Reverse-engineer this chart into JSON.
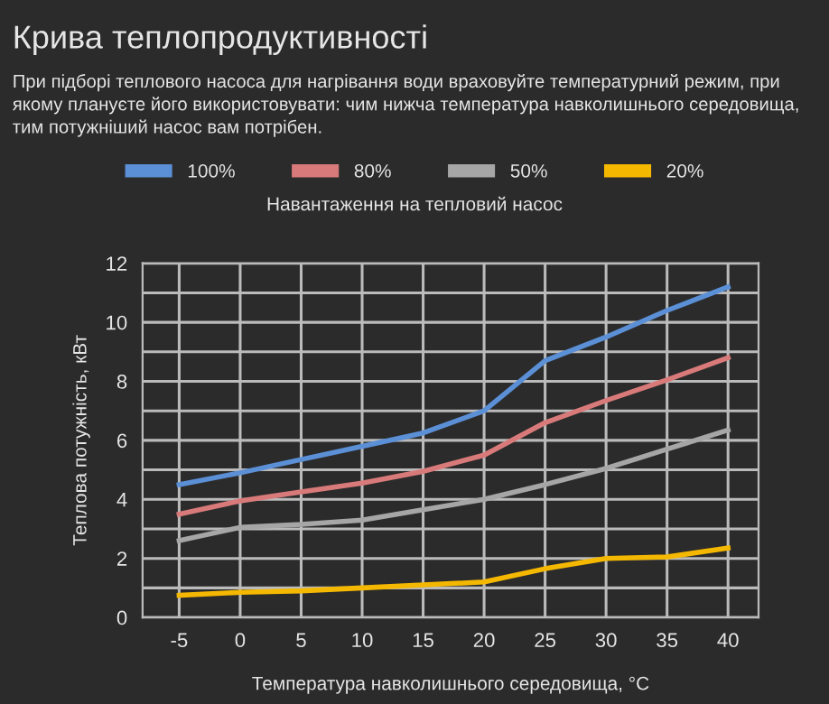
{
  "chart_data": {
    "type": "line",
    "title": "Крива теплопродуктивності",
    "subtitle": "При підборі теплового насоса для нагрівання води враховуйте температурний режим, при якому плануєте його використовувати: чим нижча температура навколишнього середовища, тим потужніший насос вам потрібен.",
    "xlabel": "Температура навколишнього середовища, °C",
    "ylabel": "Теплова потужність, кВт",
    "legend_title": "Навантаження на тепловий насос",
    "x": [
      -5,
      0,
      5,
      10,
      15,
      20,
      25,
      30,
      35,
      40
    ],
    "series": [
      {
        "name": "100%",
        "color": "#5b8fd6",
        "values": [
          4.5,
          4.9,
          5.35,
          5.8,
          6.25,
          7.0,
          8.7,
          9.5,
          10.4,
          11.2
        ]
      },
      {
        "name": "80%",
        "color": "#d97a7a",
        "values": [
          3.5,
          3.95,
          4.25,
          4.55,
          4.95,
          5.5,
          6.6,
          7.35,
          8.05,
          8.8
        ]
      },
      {
        "name": "50%",
        "color": "#a6a6a6",
        "values": [
          2.6,
          3.05,
          3.15,
          3.3,
          3.65,
          4.0,
          4.5,
          5.05,
          5.7,
          6.35
        ]
      },
      {
        "name": "20%",
        "color": "#f5b800",
        "values": [
          0.75,
          0.85,
          0.9,
          1.0,
          1.1,
          1.2,
          1.65,
          2.0,
          2.05,
          2.35
        ]
      }
    ],
    "xlim": [
      -8,
      42.5
    ],
    "xticks": [
      -5,
      0,
      5,
      10,
      15,
      20,
      25,
      30,
      35,
      40
    ],
    "ylim": [
      0,
      12
    ],
    "yticks": [
      0,
      {
        "value": 1,
        "label": null
      },
      2,
      {
        "value": 3,
        "label": null
      },
      4,
      {
        "value": 5,
        "label": null
      },
      6,
      {
        "value": 7,
        "label": null
      },
      8,
      {
        "value": 9,
        "label": null
      },
      10,
      {
        "value": 11,
        "label": null
      },
      12
    ],
    "grid": true,
    "legend": "top",
    "marker": "none",
    "line_style": "solid"
  }
}
